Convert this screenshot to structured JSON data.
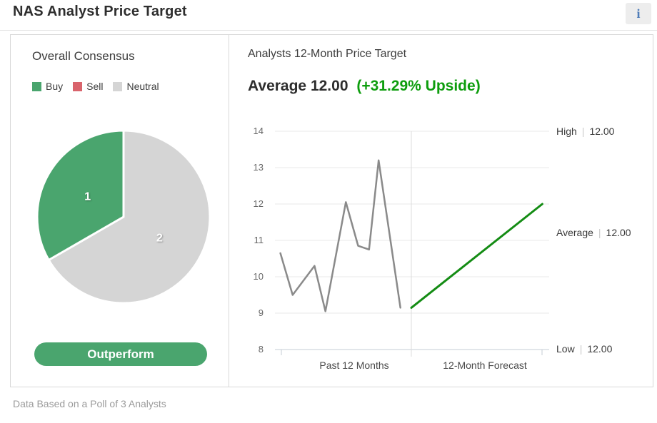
{
  "header": {
    "title": "NAS Analyst Price Target",
    "info_icon_glyph": "i"
  },
  "colors": {
    "brand_green": "#4aa56e",
    "sell_red": "#d9646c",
    "neutral_gray": "#d5d5d5",
    "upside_green": "#0d9d0d",
    "forecast_green": "#148c14",
    "past_gray": "#8a8a8a"
  },
  "consensus": {
    "heading": "Overall Consensus",
    "legend": [
      {
        "label": "Buy",
        "color": "#4aa56e"
      },
      {
        "label": "Sell",
        "color": "#d9646c"
      },
      {
        "label": "Neutral",
        "color": "#d5d5d5"
      }
    ],
    "rating_label": "Outperform"
  },
  "price_target": {
    "heading": "Analysts 12-Month Price Target",
    "average_label": "Average",
    "average_value": "12.00",
    "upside_text": "(+31.29% Upside)",
    "separator": "|",
    "side_labels": [
      {
        "name": "High",
        "value": "12.00"
      },
      {
        "name": "Average",
        "value": "12.00"
      },
      {
        "name": "Low",
        "value": "12.00"
      }
    ]
  },
  "footnote": "Data Based on a Poll of 3 Analysts",
  "chart_data": [
    {
      "type": "pie",
      "title": "Overall Consensus",
      "slices": [
        {
          "name": "Neutral",
          "label": "2",
          "value": 2,
          "color": "#d5d5d5"
        },
        {
          "name": "Buy",
          "label": "1",
          "value": 1,
          "color": "#4aa56e"
        }
      ],
      "start_angle_deg": 0,
      "gap_stroke": "#ffffff"
    },
    {
      "type": "line",
      "title": "Analysts 12-Month Price Target",
      "ylim": [
        8,
        14
      ],
      "yticks": [
        14,
        13,
        12,
        11,
        10,
        9,
        8
      ],
      "grid": true,
      "sections": [
        {
          "label": "Past 12 Months",
          "x_range": [
            0,
            1
          ]
        },
        {
          "label": "12-Month Forecast",
          "x_range": [
            1,
            2
          ]
        }
      ],
      "series": [
        {
          "name": "Past 12 Months",
          "color": "#8a8a8a",
          "width": 2.5,
          "points": [
            [
              0.04,
              10.65
            ],
            [
              0.13,
              9.5
            ],
            [
              0.29,
              10.3
            ],
            [
              0.37,
              9.05
            ],
            [
              0.52,
              12.05
            ],
            [
              0.61,
              10.85
            ],
            [
              0.69,
              10.75
            ],
            [
              0.76,
              13.2
            ],
            [
              0.92,
              9.15
            ]
          ]
        },
        {
          "name": "12-Month Forecast",
          "color": "#148c14",
          "width": 3,
          "points": [
            [
              1.0,
              9.15
            ],
            [
              1.95,
              12.0
            ]
          ]
        }
      ],
      "reference_values": {
        "high": 12.0,
        "average": 12.0,
        "low": 12.0
      }
    }
  ]
}
